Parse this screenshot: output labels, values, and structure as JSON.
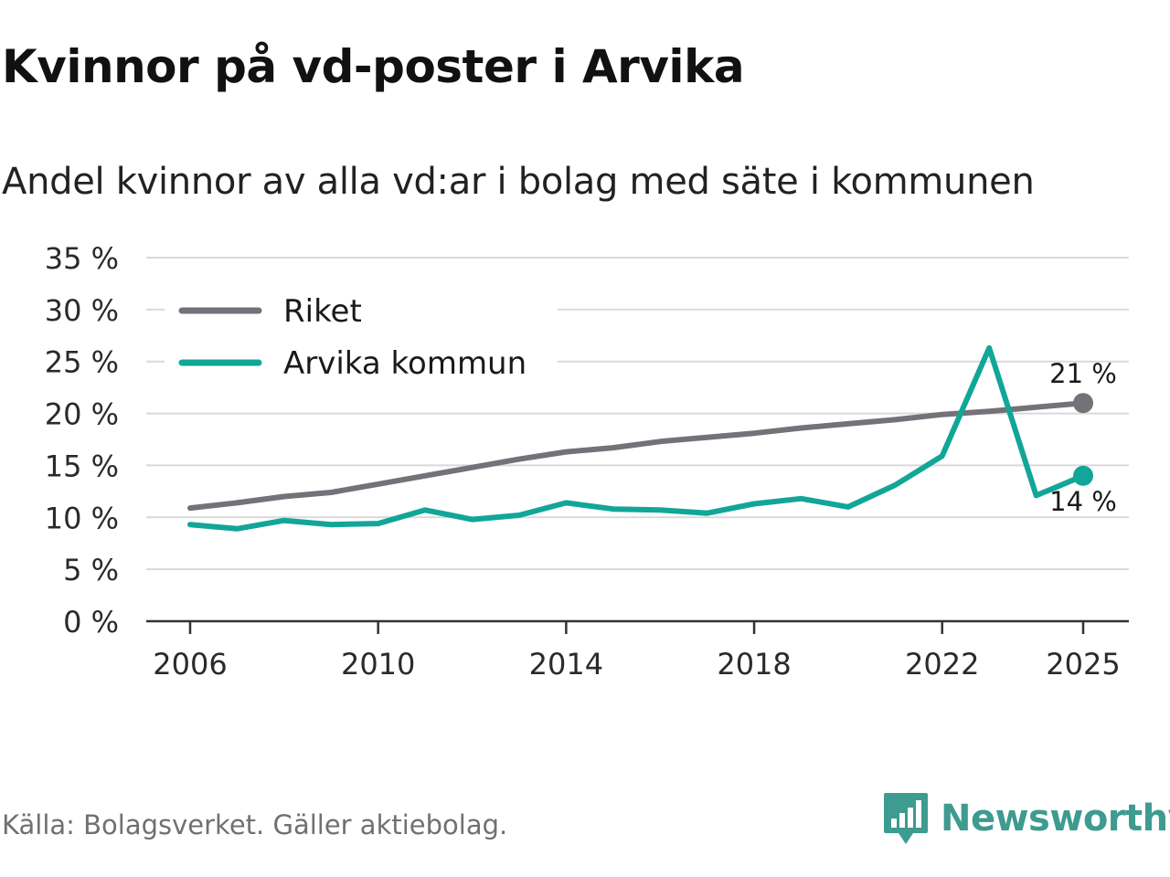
{
  "page": {
    "title": "Kvinnor på vd-poster i Arvika",
    "subtitle": "Andel kvinnor av alla vd:ar i bolag med säte i kommunen",
    "source": "Källa: Bolagsverket. Gäller aktiebolag.",
    "brand": "Newsworthy"
  },
  "colors": {
    "riket": "#747278",
    "arvika": "#11a698",
    "grid": "#d9d9d9",
    "axis": "#333333",
    "brand": "#3d9b8f"
  },
  "chart_data": {
    "type": "line",
    "title": "Kvinnor på vd-poster i Arvika",
    "subtitle": "Andel kvinnor av alla vd:ar i bolag med säte i kommunen",
    "xlabel": "",
    "ylabel": "",
    "x": [
      2006,
      2007,
      2008,
      2009,
      2010,
      2011,
      2012,
      2013,
      2014,
      2015,
      2016,
      2017,
      2018,
      2019,
      2020,
      2021,
      2022,
      2023,
      2024,
      2025
    ],
    "x_ticks": [
      2006,
      2010,
      2014,
      2018,
      2022,
      2025
    ],
    "x_tick_labels": [
      "2006",
      "2010",
      "2014",
      "2018",
      "2022",
      "2025"
    ],
    "ylim": [
      0,
      35
    ],
    "y_ticks": [
      0,
      5,
      10,
      15,
      20,
      25,
      30,
      35
    ],
    "y_tick_labels": [
      "0 %",
      "5 %",
      "10 %",
      "15 %",
      "20 %",
      "25 %",
      "30 %",
      "35 %"
    ],
    "grid": true,
    "legend_position": "top-left",
    "series": [
      {
        "name": "Riket",
        "color": "#747278",
        "values": [
          10.9,
          11.4,
          12.0,
          12.4,
          13.2,
          14.0,
          14.8,
          15.6,
          16.3,
          16.7,
          17.3,
          17.7,
          18.1,
          18.6,
          19.0,
          19.4,
          19.9,
          20.2,
          20.6,
          21.0
        ],
        "end_label": "21 %"
      },
      {
        "name": "Arvika kommun",
        "color": "#11a698",
        "values": [
          9.3,
          8.9,
          9.7,
          9.3,
          9.4,
          10.7,
          9.8,
          10.2,
          11.4,
          10.8,
          10.7,
          10.4,
          11.3,
          11.8,
          11.0,
          13.1,
          15.9,
          26.3,
          12.1,
          14.0
        ],
        "end_label": "14 %"
      }
    ]
  }
}
